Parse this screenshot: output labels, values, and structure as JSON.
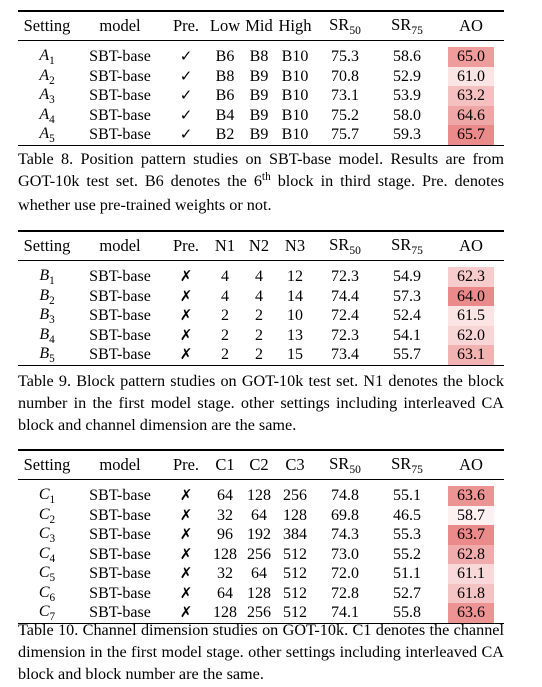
{
  "tables": [
    {
      "headers": [
        "Setting",
        "model",
        "Pre.",
        "Low",
        "Mid",
        "High",
        "SR",
        "SR",
        "AO"
      ],
      "header_subs": {
        "6": "50",
        "7": "75"
      },
      "rows": [
        {
          "letter": "A",
          "sub": "1",
          "model": "SBT-base",
          "pre": "✓",
          "c1": "B6",
          "c2": "B8",
          "c3": "B10",
          "sr50": "75.3",
          "sr75": "58.6",
          "ao": "65.0",
          "ao_color": "#ee9c9c"
        },
        {
          "letter": "A",
          "sub": "2",
          "model": "SBT-base",
          "pre": "✓",
          "c1": "B8",
          "c2": "B9",
          "c3": "B10",
          "sr50": "70.8",
          "sr75": "52.9",
          "ao": "61.0",
          "ao_color": "#fbe4e4"
        },
        {
          "letter": "A",
          "sub": "3",
          "model": "SBT-base",
          "pre": "✓",
          "c1": "B6",
          "c2": "B9",
          "c3": "B10",
          "sr50": "73.1",
          "sr75": "53.9",
          "ao": "63.2",
          "ao_color": "#f4c0c0"
        },
        {
          "letter": "A",
          "sub": "4",
          "model": "SBT-base",
          "pre": "✓",
          "c1": "B4",
          "c2": "B9",
          "c3": "B10",
          "sr50": "75.2",
          "sr75": "58.0",
          "ao": "64.6",
          "ao_color": "#efa6a6"
        },
        {
          "letter": "A",
          "sub": "5",
          "model": "SBT-base",
          "pre": "✓",
          "c1": "B2",
          "c2": "B9",
          "c3": "B10",
          "sr50": "75.7",
          "sr75": "59.3",
          "ao": "65.7",
          "ao_color": "#ea8a8a"
        }
      ],
      "caption_pre": "Table 8. Position pattern studies on SBT-base model. Results are from GOT-10k test set. B6 denotes the 6",
      "caption_sup": "th",
      "caption_post": " block in third stage. Pre. denotes whether use pre-trained weights or not."
    },
    {
      "headers": [
        "Setting",
        "model",
        "Pre.",
        "N1",
        "N2",
        "N3",
        "SR",
        "SR",
        "AO"
      ],
      "header_subs": {
        "6": "50",
        "7": "75"
      },
      "rows": [
        {
          "letter": "B",
          "sub": "1",
          "model": "SBT-base",
          "pre": "✗",
          "c1": "4",
          "c2": "4",
          "c3": "12",
          "sr50": "72.3",
          "sr75": "54.9",
          "ao": "62.3",
          "ao_color": "#f6cccc"
        },
        {
          "letter": "B",
          "sub": "2",
          "model": "SBT-base",
          "pre": "✗",
          "c1": "4",
          "c2": "4",
          "c3": "14",
          "sr50": "74.4",
          "sr75": "57.3",
          "ao": "64.0",
          "ao_color": "#ea8a8a"
        },
        {
          "letter": "B",
          "sub": "3",
          "model": "SBT-base",
          "pre": "✗",
          "c1": "2",
          "c2": "2",
          "c3": "10",
          "sr50": "72.4",
          "sr75": "52.4",
          "ao": "61.5",
          "ao_color": "#fbe4e4"
        },
        {
          "letter": "B",
          "sub": "4",
          "model": "SBT-base",
          "pre": "✗",
          "c1": "2",
          "c2": "2",
          "c3": "13",
          "sr50": "72.3",
          "sr75": "54.1",
          "ao": "62.0",
          "ao_color": "#f8d6d6"
        },
        {
          "letter": "B",
          "sub": "5",
          "model": "SBT-base",
          "pre": "✗",
          "c1": "2",
          "c2": "2",
          "c3": "15",
          "sr50": "73.4",
          "sr75": "55.7",
          "ao": "63.1",
          "ao_color": "#f1b2b2"
        }
      ],
      "caption_pre": "Table 9. Block pattern studies on GOT-10k test set. N1 denotes the block number in the first model stage. other settings including interleaved CA block and channel dimension are the same.",
      "caption_sup": "",
      "caption_post": ""
    },
    {
      "headers": [
        "Setting",
        "model",
        "Pre.",
        "C1",
        "C2",
        "C3",
        "SR",
        "SR",
        "AO"
      ],
      "header_subs": {
        "6": "50",
        "7": "75"
      },
      "rows": [
        {
          "letter": "C",
          "sub": "1",
          "model": "SBT-base",
          "pre": "✗",
          "c1": "64",
          "c2": "128",
          "c3": "256",
          "sr50": "74.8",
          "sr75": "55.1",
          "ao": "63.6",
          "ao_color": "#ec9494"
        },
        {
          "letter": "C",
          "sub": "2",
          "model": "SBT-base",
          "pre": "✗",
          "c1": "32",
          "c2": "64",
          "c3": "128",
          "sr50": "69.8",
          "sr75": "46.5",
          "ao": "58.7",
          "ao_color": "#fdf0f0"
        },
        {
          "letter": "C",
          "sub": "3",
          "model": "SBT-base",
          "pre": "✗",
          "c1": "96",
          "c2": "192",
          "c3": "384",
          "sr50": "74.3",
          "sr75": "55.3",
          "ao": "63.7",
          "ao_color": "#ea8a8a"
        },
        {
          "letter": "C",
          "sub": "4",
          "model": "SBT-base",
          "pre": "✗",
          "c1": "128",
          "c2": "256",
          "c3": "512",
          "sr50": "73.0",
          "sr75": "55.2",
          "ao": "62.8",
          "ao_color": "#f0acac"
        },
        {
          "letter": "C",
          "sub": "5",
          "model": "SBT-base",
          "pre": "✗",
          "c1": "32",
          "c2": "64",
          "c3": "512",
          "sr50": "72.0",
          "sr75": "51.1",
          "ao": "61.1",
          "ao_color": "#f8d8d8"
        },
        {
          "letter": "C",
          "sub": "6",
          "model": "SBT-base",
          "pre": "✗",
          "c1": "64",
          "c2": "128",
          "c3": "512",
          "sr50": "72.8",
          "sr75": "52.7",
          "ao": "61.8",
          "ao_color": "#f4c4c4"
        },
        {
          "letter": "C",
          "sub": "7",
          "model": "SBT-base",
          "pre": "✗",
          "c1": "128",
          "c2": "256",
          "c3": "512",
          "sr50": "74.1",
          "sr75": "55.8",
          "ao": "63.6",
          "ao_color": "#ec9494"
        }
      ],
      "caption_pre": "Table 10. Channel dimension studies on GOT-10k. C1 denotes the channel dimension in the first model stage. other settings including interleaved CA block and block number are the same.",
      "caption_sup": "",
      "caption_post": ""
    }
  ]
}
